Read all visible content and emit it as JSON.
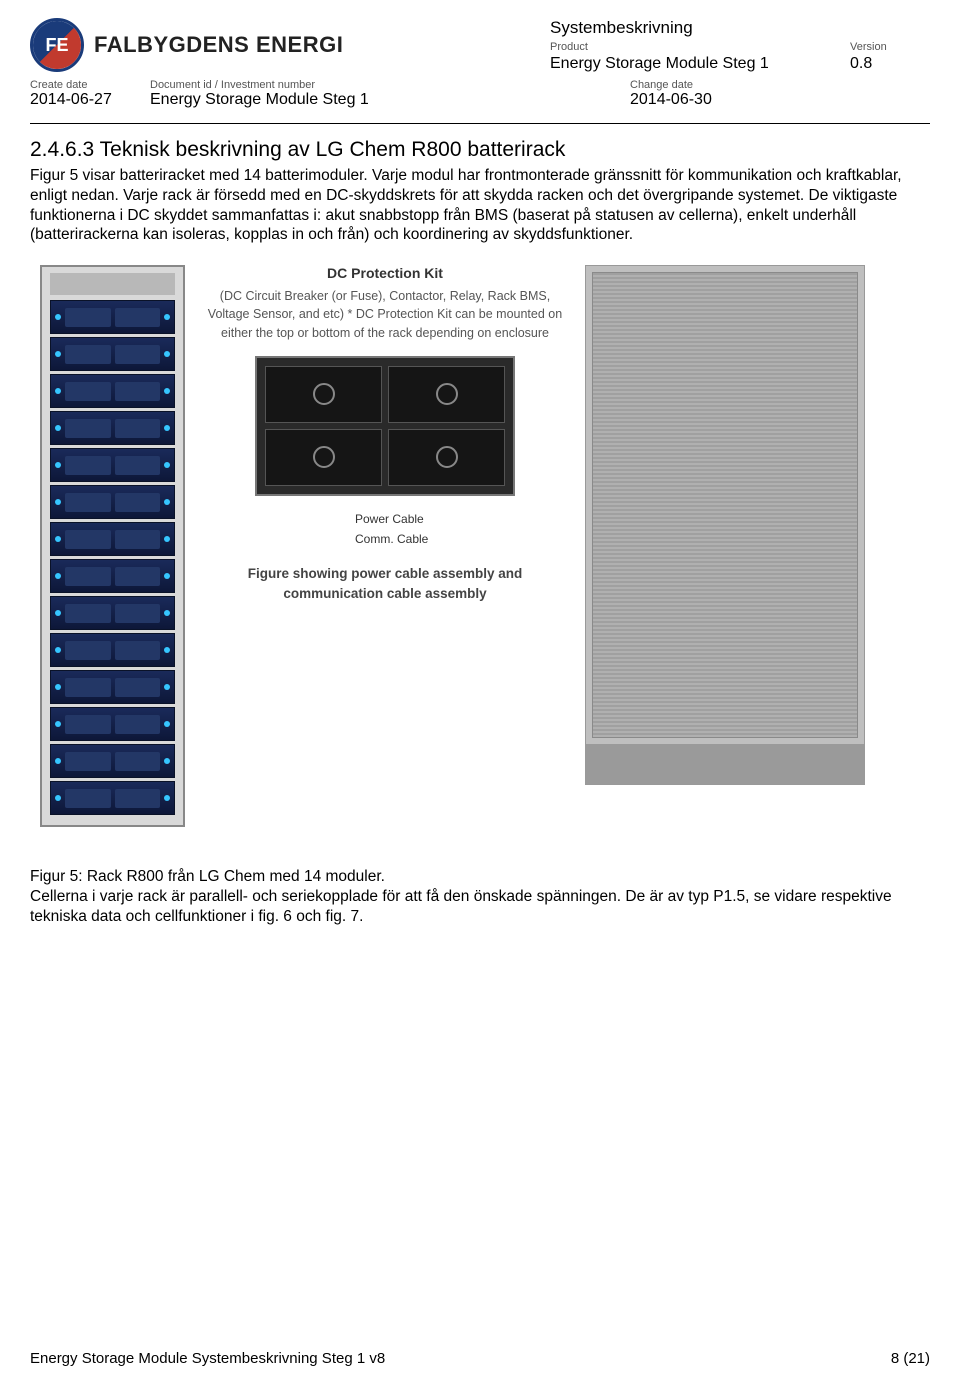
{
  "header": {
    "company_name": "FALBYGDENS ENERGI",
    "doc_type": "Systembeskrivning",
    "product_label": "Product",
    "product_value": "Energy Storage Module Steg 1",
    "version_label": "Version",
    "version_value": "0.8",
    "create_date_label": "Create date",
    "create_date_value": "2014-06-27",
    "docid_label": "Document id / Investment number",
    "docid_value": "Energy Storage Module Steg 1",
    "change_date_label": "Change date",
    "change_date_value": "2014-06-30"
  },
  "section": {
    "heading": "2.4.6.3  Teknisk beskrivning av LG Chem R800 batterirack",
    "body": "Figur 5 visar batteriracket med 14 batterimoduler. Varje modul har frontmonterade gränssnitt för kommunikation och kraftkablar, enligt nedan. Varje rack är försedd med en DC-skyddskrets för att skydda racken och det övergripande systemet. De viktigaste funktionerna i DC skyddet sammanfattas i: akut snabbstopp från BMS (baserat på statusen av cellerna), enkelt underhåll (batterirackerna kan isoleras, kopplas in och från) och koordinering av skyddsfunktioner."
  },
  "figure": {
    "callout_title": "DC Protection Kit",
    "callout_sub": "(DC Circuit Breaker (or Fuse), Contactor, Relay, Rack BMS, Voltage Sensor, and etc)\n* DC Protection Kit can be mounted on either the top or bottom of the rack depending on enclosure",
    "power_label": "Power Cable",
    "comm_label": "Comm. Cable",
    "bottom_caption": "Figure showing power cable assembly\nand communication cable assembly",
    "module_count": 14,
    "colors": {
      "module_bg_top": "#1a2a5a",
      "module_bg_bottom": "#0d1738",
      "led": "#36c6ff",
      "rack_frame": "#d9d9d9",
      "enclosure": "#bfbfbf"
    }
  },
  "caption": {
    "line1": "Figur 5: Rack R800 från LG Chem med 14 moduler.",
    "line2": "Cellerna i varje rack är parallell- och seriekopplade för att få den önskade spänningen. De är av typ P1.5, se vidare respektive tekniska data och cellfunktioner i fig. 6 och fig. 7."
  },
  "footer": {
    "left": "Energy Storage Module Systembeskrivning Steg 1 v8",
    "right": "8 (21)"
  }
}
